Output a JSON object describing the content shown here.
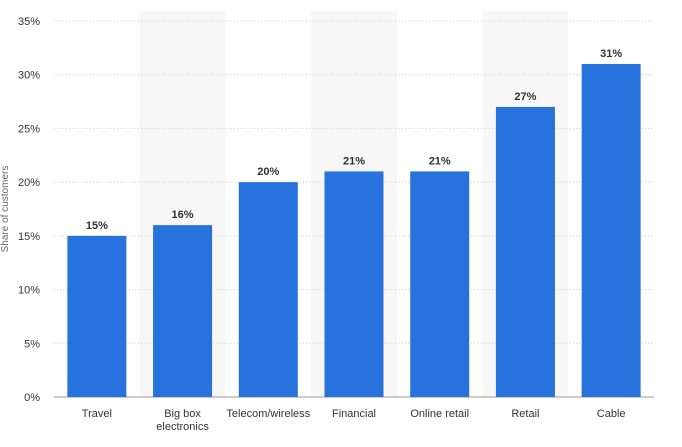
{
  "chart_data": {
    "type": "bar",
    "categories": [
      [
        "Travel"
      ],
      [
        "Big box",
        "electronics"
      ],
      [
        "Telecom/wireless"
      ],
      [
        "Financial"
      ],
      [
        "Online retail"
      ],
      [
        "Retail"
      ],
      [
        "Cable"
      ]
    ],
    "values": [
      15,
      16,
      20,
      21,
      21,
      27,
      31
    ],
    "data_labels": [
      "15%",
      "16%",
      "20%",
      "21%",
      "21%",
      "27%",
      "31%"
    ],
    "title": "",
    "xlabel": "",
    "ylabel": "Share of customers",
    "ylim": [
      0,
      35
    ],
    "yticks": [
      0,
      5,
      10,
      15,
      20,
      25,
      30,
      35
    ],
    "ytick_labels": [
      "0%",
      "5%",
      "10%",
      "15%",
      "20%",
      "25%",
      "30%",
      "35%"
    ],
    "grid": true,
    "alternating_band_columns": [
      1,
      3,
      5
    ],
    "colors": {
      "bar": "#2872dd",
      "band": "#f7f7f7",
      "grid": "#d0d0d0",
      "axis": "#999999"
    }
  }
}
